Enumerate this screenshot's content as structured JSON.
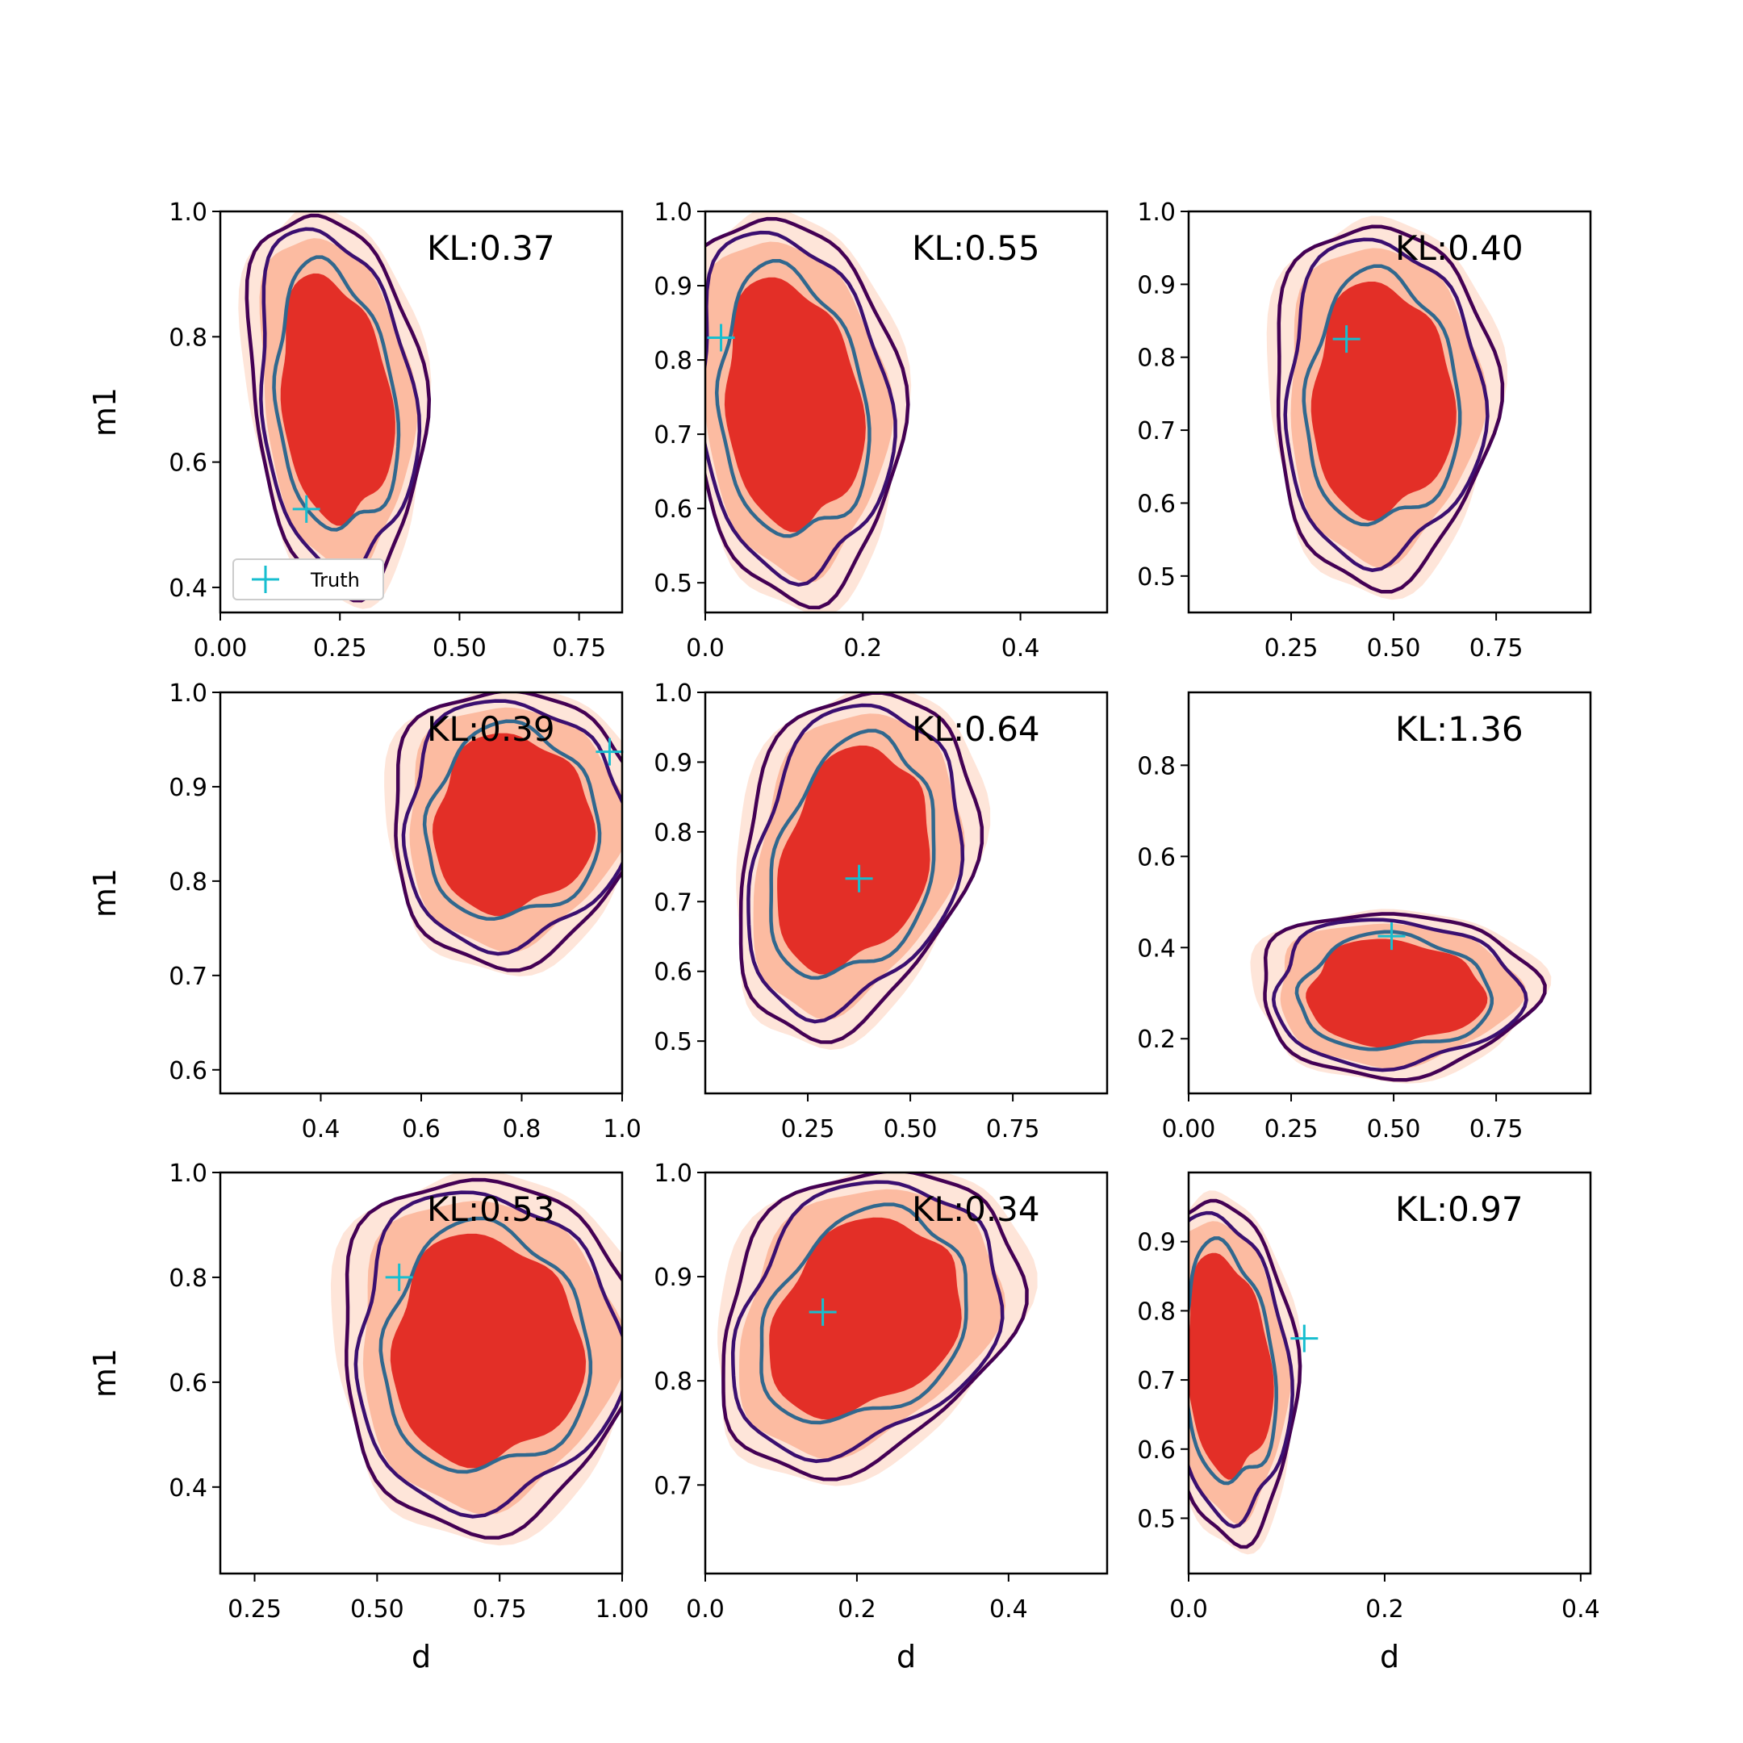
{
  "figure": {
    "legend_label": "Truth",
    "colors": {
      "fill_outer": "#fee5d9",
      "fill_mid": "#fcbba1",
      "fill_inner": "#e32f27",
      "contour_outer": "#440154",
      "contour_mid": "#3b0f70",
      "contour_inner": "#31688e",
      "truth_marker": "#17becf"
    }
  },
  "chart_data": [
    {
      "type": "contour",
      "annotation": "KL:0.37",
      "truth": [
        0.18,
        0.525
      ],
      "xlim": [
        0.0,
        0.84
      ],
      "ylim": [
        0.36,
        1.0
      ],
      "xticks": [
        0.0,
        0.25,
        0.5,
        0.75
      ],
      "xtick_labels": [
        "0.00",
        "0.25",
        "0.50",
        "0.75"
      ],
      "yticks": [
        0.4,
        0.6,
        0.8,
        1.0
      ],
      "ytick_labels": [
        "0.4",
        "0.6",
        "0.8",
        "1.0"
      ],
      "xlabel": "",
      "ylabel": "m1",
      "legend": true,
      "shape": {
        "cx": 0.24,
        "cy": 0.7,
        "rx": 0.16,
        "ry": 0.27,
        "skew": -0.12
      }
    },
    {
      "type": "contour",
      "annotation": "KL:0.55",
      "truth": [
        0.02,
        0.83
      ],
      "xlim": [
        0.0,
        0.51
      ],
      "ylim": [
        0.46,
        1.0
      ],
      "xticks": [
        0.0,
        0.2,
        0.4
      ],
      "xtick_labels": [
        "0.0",
        "0.2",
        "0.4"
      ],
      "yticks": [
        0.5,
        0.6,
        0.7,
        0.8,
        0.9,
        1.0
      ],
      "ytick_labels": [
        "0.5",
        "0.6",
        "0.7",
        "0.8",
        "0.9",
        "1.0"
      ],
      "xlabel": "",
      "ylabel": "",
      "legend": false,
      "shape": {
        "cx": 0.11,
        "cy": 0.74,
        "rx": 0.12,
        "ry": 0.23,
        "skew": -0.08
      }
    },
    {
      "type": "contour",
      "annotation": "KL:0.40",
      "truth": [
        0.385,
        0.825
      ],
      "xlim": [
        0.0,
        0.98
      ],
      "ylim": [
        0.45,
        1.0
      ],
      "xticks": [
        0.25,
        0.5,
        0.75
      ],
      "xtick_labels": [
        "0.25",
        "0.50",
        "0.75"
      ],
      "yticks": [
        0.5,
        0.6,
        0.7,
        0.8,
        0.9,
        1.0
      ],
      "ytick_labels": [
        "0.5",
        "0.6",
        "0.7",
        "0.8",
        "0.9",
        "1.0"
      ],
      "xlabel": "",
      "ylabel": "",
      "legend": false,
      "shape": {
        "cx": 0.47,
        "cy": 0.74,
        "rx": 0.24,
        "ry": 0.22,
        "skew": 0.0
      }
    },
    {
      "type": "contour",
      "annotation": "KL:0.39",
      "truth": [
        0.975,
        0.937
      ],
      "xlim": [
        0.2,
        1.0
      ],
      "ylim": [
        0.575,
        1.0
      ],
      "xticks": [
        0.4,
        0.6,
        0.8,
        1.0
      ],
      "xtick_labels": [
        "0.4",
        "0.6",
        "0.8",
        "1.0"
      ],
      "yticks": [
        0.6,
        0.7,
        0.8,
        0.9,
        1.0
      ],
      "ytick_labels": [
        "0.6",
        "0.7",
        "0.8",
        "0.9",
        "1.0"
      ],
      "xlabel": "",
      "ylabel": "m1",
      "legend": false,
      "shape": {
        "cx": 0.78,
        "cy": 0.86,
        "rx": 0.22,
        "ry": 0.13,
        "skew": 0.05
      }
    },
    {
      "type": "contour",
      "annotation": "KL:0.64",
      "truth": [
        0.375,
        0.733
      ],
      "xlim": [
        0.0,
        0.98
      ],
      "ylim": [
        0.425,
        1.0
      ],
      "xticks": [
        0.25,
        0.5,
        0.75
      ],
      "xtick_labels": [
        "0.25",
        "0.50",
        "0.75"
      ],
      "yticks": [
        0.5,
        0.6,
        0.7,
        0.8,
        0.9,
        1.0
      ],
      "ytick_labels": [
        "0.5",
        "0.6",
        "0.7",
        "0.8",
        "0.9",
        "1.0"
      ],
      "xlabel": "",
      "ylabel": "",
      "legend": false,
      "shape": {
        "cx": 0.36,
        "cy": 0.76,
        "rx": 0.25,
        "ry": 0.22,
        "skew": 0.3
      }
    },
    {
      "type": "contour",
      "annotation": "KL:1.36",
      "truth": [
        0.495,
        0.425
      ],
      "xlim": [
        0.0,
        0.98
      ],
      "ylim": [
        0.08,
        0.96
      ],
      "xticks": [
        0.0,
        0.25,
        0.5,
        0.75
      ],
      "xtick_labels": [
        "0.00",
        "0.25",
        "0.50",
        "0.75"
      ],
      "yticks": [
        0.2,
        0.4,
        0.6,
        0.8
      ],
      "ytick_labels": [
        "0.2",
        "0.4",
        "0.6",
        "0.8"
      ],
      "xlabel": "",
      "ylabel": "",
      "legend": false,
      "shape": {
        "cx": 0.5,
        "cy": 0.3,
        "rx": 0.3,
        "ry": 0.16,
        "skew": 0.0
      }
    },
    {
      "type": "contour",
      "annotation": "KL:0.53",
      "truth": [
        0.545,
        0.8
      ],
      "xlim": [
        0.18,
        1.0
      ],
      "ylim": [
        0.235,
        1.0
      ],
      "xticks": [
        0.25,
        0.5,
        0.75,
        1.0
      ],
      "xtick_labels": [
        "0.25",
        "0.50",
        "0.75",
        "1.00"
      ],
      "yticks": [
        0.4,
        0.6,
        0.8,
        1.0
      ],
      "ytick_labels": [
        "0.4",
        "0.6",
        "0.8",
        "1.0"
      ],
      "xlabel": "d",
      "ylabel": "m1",
      "legend": false,
      "shape": {
        "cx": 0.72,
        "cy": 0.66,
        "rx": 0.27,
        "ry": 0.3,
        "skew": 0.0
      }
    },
    {
      "type": "contour",
      "annotation": "KL:0.34",
      "truth": [
        0.155,
        0.866
      ],
      "xlim": [
        0.0,
        0.53
      ],
      "ylim": [
        0.615,
        1.0
      ],
      "xticks": [
        0.0,
        0.2,
        0.4
      ],
      "xtick_labels": [
        "0.0",
        "0.2",
        "0.4"
      ],
      "yticks": [
        0.7,
        0.8,
        0.9,
        1.0
      ],
      "ytick_labels": [
        "0.7",
        "0.8",
        "0.9",
        "1.0"
      ],
      "xlabel": "d",
      "ylabel": "",
      "legend": false,
      "shape": {
        "cx": 0.21,
        "cy": 0.86,
        "rx": 0.17,
        "ry": 0.13,
        "skew": 0.35
      }
    },
    {
      "type": "contour",
      "annotation": "KL:0.97",
      "truth": [
        0.118,
        0.76
      ],
      "xlim": [
        0.0,
        0.41
      ],
      "ylim": [
        0.42,
        1.0
      ],
      "xticks": [
        0.0,
        0.2,
        0.4
      ],
      "xtick_labels": [
        "0.0",
        "0.2",
        "0.4"
      ],
      "yticks": [
        0.5,
        0.6,
        0.7,
        0.8,
        0.9
      ],
      "ytick_labels": [
        "0.5",
        "0.6",
        "0.7",
        "0.8",
        "0.9"
      ],
      "xlabel": "d",
      "ylabel": "",
      "legend": false,
      "shape": {
        "cx": 0.04,
        "cy": 0.72,
        "rx": 0.06,
        "ry": 0.22,
        "skew": -0.05
      }
    }
  ]
}
